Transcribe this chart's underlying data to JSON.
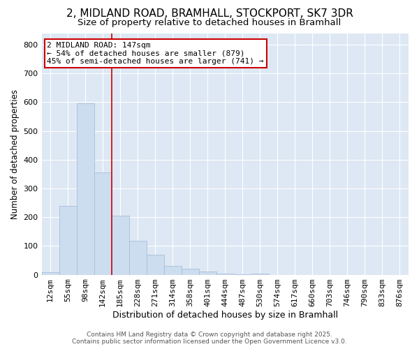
{
  "title_line1": "2, MIDLAND ROAD, BRAMHALL, STOCKPORT, SK7 3DR",
  "title_line2": "Size of property relative to detached houses in Bramhall",
  "xlabel": "Distribution of detached houses by size in Bramhall",
  "ylabel": "Number of detached properties",
  "categories": [
    "12sqm",
    "55sqm",
    "98sqm",
    "142sqm",
    "185sqm",
    "228sqm",
    "271sqm",
    "314sqm",
    "358sqm",
    "401sqm",
    "444sqm",
    "487sqm",
    "530sqm",
    "574sqm",
    "617sqm",
    "660sqm",
    "703sqm",
    "746sqm",
    "790sqm",
    "833sqm",
    "876sqm"
  ],
  "values": [
    8,
    240,
    595,
    355,
    205,
    118,
    70,
    30,
    20,
    10,
    4,
    2,
    5,
    0,
    0,
    0,
    0,
    0,
    0,
    0,
    0
  ],
  "bar_color": "#ccddf0",
  "bar_edge_color": "#aabdd8",
  "bar_linewidth": 0.6,
  "vline_x_idx": 3,
  "vline_color": "#cc0000",
  "vline_linewidth": 1.2,
  "annotation_text_line1": "2 MIDLAND ROAD: 147sqm",
  "annotation_text_line2": "← 54% of detached houses are smaller (879)",
  "annotation_text_line3": "45% of semi-detached houses are larger (741) →",
  "annotation_box_facecolor": "#ffffff",
  "annotation_box_edgecolor": "#cc0000",
  "ylim": [
    0,
    840
  ],
  "yticks": [
    0,
    100,
    200,
    300,
    400,
    500,
    600,
    700,
    800
  ],
  "fig_background_color": "#ffffff",
  "plot_bg_color": "#dde8f4",
  "grid_color": "#ffffff",
  "grid_linewidth": 0.8,
  "footer_line1": "Contains HM Land Registry data © Crown copyright and database right 2025.",
  "footer_line2": "Contains public sector information licensed under the Open Government Licence v3.0.",
  "title_fontsize": 11,
  "subtitle_fontsize": 9.5,
  "ylabel_fontsize": 8.5,
  "xlabel_fontsize": 9,
  "tick_fontsize": 8,
  "annotation_fontsize": 8,
  "footer_fontsize": 6.5
}
